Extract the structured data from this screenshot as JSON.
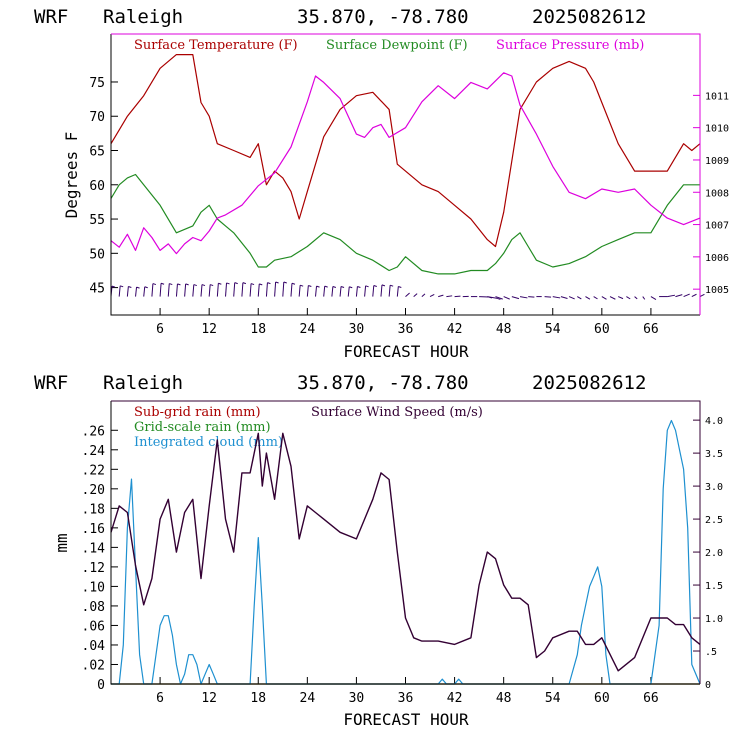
{
  "header": {
    "model": "WRF",
    "location": "Raleigh",
    "coords": "35.870, -78.780",
    "run": "2025082612"
  },
  "colors": {
    "temperature": "#aa0000",
    "dewpoint": "#228b22",
    "pressure": "#dd00dd",
    "sub_grid_rain": "#aa0000",
    "grid_scale_rain": "#228b22",
    "integrated_cloud": "#1e90d0",
    "wind_speed": "#330033",
    "axis_top_right": "#dd00dd",
    "axis_bottom": "#330033"
  },
  "chart_data": [
    {
      "type": "line",
      "xlabel": "FORECAST HOUR",
      "ylabel": "Degrees F",
      "xlim": [
        0,
        72
      ],
      "ylim": [
        41,
        82
      ],
      "y2lim": [
        1004.2,
        1012.9
      ],
      "x_ticks": [
        "6",
        "12",
        "18",
        "24",
        "30",
        "36",
        "42",
        "48",
        "54",
        "60",
        "66"
      ],
      "y_ticks": [
        "45",
        "50",
        "55",
        "60",
        "65",
        "70",
        "75"
      ],
      "y2_ticks": [
        "1005",
        "1006",
        "1007",
        "1008",
        "1009",
        "1010",
        "1011"
      ],
      "legend": [
        "Surface Temperature (F)",
        "Surface Dewpoint (F)",
        "Surface Pressure (mb)"
      ],
      "legend_placement": "top",
      "series": [
        {
          "name": "Surface Temperature (F)",
          "axis": "left",
          "x": [
            0,
            2,
            4,
            6,
            8,
            10,
            11,
            12,
            13,
            15,
            17,
            18,
            19,
            20,
            21,
            22,
            23,
            24,
            26,
            28,
            30,
            32,
            34,
            35,
            36,
            38,
            40,
            42,
            44,
            46,
            47,
            48,
            50,
            52,
            54,
            56,
            58,
            59,
            60,
            62,
            64,
            66,
            68,
            70,
            71,
            72
          ],
          "y": [
            66,
            70,
            73,
            77,
            79,
            79,
            72,
            70,
            66,
            65,
            64,
            66,
            60,
            62,
            61,
            59,
            55,
            59,
            67,
            71,
            73,
            73.5,
            71,
            63,
            62,
            60,
            59,
            57,
            55,
            52,
            51,
            56,
            71,
            75,
            77,
            78,
            77,
            75,
            72,
            66,
            62,
            62,
            62,
            66,
            65,
            66
          ]
        },
        {
          "name": "Surface Dewpoint (F)",
          "axis": "left",
          "x": [
            0,
            1,
            2,
            3,
            4,
            6,
            8,
            10,
            11,
            12,
            13,
            14,
            15,
            17,
            18,
            19,
            20,
            22,
            24,
            26,
            28,
            30,
            32,
            34,
            35,
            36,
            38,
            40,
            42,
            44,
            46,
            47,
            48,
            49,
            50,
            51,
            52,
            54,
            56,
            58,
            60,
            62,
            64,
            66,
            68,
            70,
            72
          ],
          "y": [
            58,
            60,
            61,
            61.5,
            60,
            57,
            53,
            54,
            56,
            57,
            55,
            54,
            53,
            50,
            48,
            48,
            49,
            49.5,
            51,
            53,
            52,
            50,
            49,
            47.5,
            48,
            49.5,
            47.5,
            47,
            47,
            47.5,
            47.5,
            48.5,
            50,
            52,
            53,
            51,
            49,
            48,
            48.5,
            49.5,
            51,
            52,
            53,
            53,
            57,
            60,
            60
          ]
        },
        {
          "name": "Surface Pressure (mb)",
          "axis": "right",
          "x": [
            0,
            1,
            2,
            3,
            4,
            5,
            6,
            7,
            8,
            9,
            10,
            11,
            12,
            13,
            14,
            16,
            18,
            20,
            22,
            24,
            25,
            26,
            28,
            30,
            31,
            32,
            33,
            34,
            36,
            38,
            40,
            42,
            44,
            46,
            48,
            49,
            50,
            52,
            54,
            56,
            58,
            60,
            62,
            64,
            66,
            68,
            70,
            72
          ],
          "y": [
            1006.5,
            1006.3,
            1006.7,
            1006.2,
            1006.9,
            1006.6,
            1006.2,
            1006.4,
            1006.1,
            1006.4,
            1006.6,
            1006.5,
            1006.8,
            1007.2,
            1007.3,
            1007.6,
            1008.2,
            1008.6,
            1009.4,
            1010.8,
            1011.6,
            1011.4,
            1010.9,
            1009.8,
            1009.7,
            1010.0,
            1010.1,
            1009.7,
            1010.0,
            1010.8,
            1011.3,
            1010.9,
            1011.4,
            1011.2,
            1011.7,
            1011.6,
            1010.7,
            1009.8,
            1008.8,
            1008.0,
            1007.8,
            1008.1,
            1008.0,
            1008.1,
            1007.6,
            1007.2,
            1007.0,
            1007.2
          ]
        }
      ],
      "wind_barbs": {
        "row_value": 45,
        "x": [
          0,
          1,
          2,
          3,
          4,
          5,
          6,
          7,
          8,
          9,
          10,
          11,
          12,
          13,
          14,
          15,
          16,
          17,
          18,
          19,
          20,
          21,
          22,
          23,
          24,
          25,
          26,
          27,
          28,
          29,
          30,
          31,
          32,
          33,
          34,
          35,
          36,
          37,
          38,
          39,
          40,
          41,
          42,
          43,
          44,
          45,
          46,
          47,
          48,
          49,
          50,
          51,
          52,
          53,
          54,
          55,
          56,
          57,
          58,
          59,
          60,
          61,
          62,
          63,
          64,
          65,
          66,
          67,
          68,
          69,
          70,
          71,
          72
        ],
        "direction": [
          0,
          0,
          0,
          0,
          0,
          0,
          0,
          0,
          0,
          0,
          0,
          0,
          0,
          0,
          0,
          0,
          0,
          0,
          0,
          0,
          0,
          0,
          0,
          0,
          0,
          0,
          0,
          0,
          0,
          0,
          0,
          0,
          0,
          0,
          0,
          0,
          30,
          30,
          30,
          45,
          60,
          75,
          80,
          85,
          90,
          95,
          110,
          125,
          130,
          120,
          110,
          100,
          90,
          100,
          110,
          120,
          130,
          140,
          140,
          140,
          140,
          135,
          130,
          140,
          150,
          160,
          140,
          90,
          70,
          60,
          50,
          45,
          45
        ],
        "speed_ms": [
          1.7,
          1.8,
          1.6,
          1.4,
          1.5,
          2.5,
          2.6,
          2.5,
          2.4,
          2.4,
          2.2,
          2.2,
          2.2,
          2.6,
          2.7,
          2.8,
          2.8,
          2.5,
          2.4,
          2.8,
          3.0,
          3.0,
          2.6,
          2.0,
          1.9,
          1.7,
          1.7,
          1.6,
          1.6,
          1.5,
          1.6,
          1.8,
          1.9,
          2.1,
          2.0,
          1.6,
          1.0,
          0.6,
          0.4,
          0.3,
          0.3,
          0.3,
          0.3,
          0.3,
          0.4,
          1.5,
          1.8,
          1.2,
          0.9,
          1.0,
          0.9,
          0.4,
          0.1,
          0.5,
          0.9,
          0.8,
          0.7,
          0.4,
          0.6,
          0.3,
          0.7,
          0.8,
          0.4,
          0.3,
          0.1,
          0.3,
          0.9,
          1.0,
          1.0,
          0.9,
          0.9,
          0.5,
          0.4
        ]
      }
    },
    {
      "type": "line",
      "xlabel": "FORECAST HOUR",
      "ylabel": "mm",
      "xlim": [
        0,
        72
      ],
      "ylim": [
        0,
        0.29
      ],
      "y2lim": [
        0,
        4.29
      ],
      "x_ticks": [
        "6",
        "12",
        "18",
        "24",
        "30",
        "36",
        "42",
        "48",
        "54",
        "60",
        "66"
      ],
      "y_ticks": [
        "0",
        ".02",
        ".04",
        ".06",
        ".08",
        ".10",
        ".12",
        ".14",
        ".16",
        ".18",
        ".20",
        ".22",
        ".24",
        ".26"
      ],
      "y2_ticks": [
        "0",
        ".5",
        "1.0",
        "1.5",
        "2.0",
        "2.5",
        "3.0",
        "3.5",
        "4.0"
      ],
      "legend": [
        "Sub-grid rain (mm)",
        "Surface Wind Speed (m/s)",
        "Grid-scale rain (mm)",
        "Integrated cloud (mm)"
      ],
      "legend_placement": "top-left",
      "series": [
        {
          "name": "Sub-grid rain (mm)",
          "axis": "left",
          "x": [
            0,
            72
          ],
          "y": [
            0,
            0
          ]
        },
        {
          "name": "Grid-scale rain (mm)",
          "axis": "left",
          "x": [
            0,
            72
          ],
          "y": [
            0,
            0
          ]
        },
        {
          "name": "Integrated cloud (mm)",
          "axis": "left",
          "x": [
            0,
            1,
            1.5,
            2,
            2.5,
            3,
            3.5,
            4,
            5,
            5.5,
            6,
            6.5,
            7,
            7.5,
            8,
            8.5,
            9,
            9.5,
            10,
            10.5,
            11,
            11.5,
            12,
            12.5,
            13,
            17,
            17.5,
            18,
            18.5,
            19,
            40,
            40.5,
            41,
            42,
            42.5,
            43,
            56,
            57,
            57.5,
            58,
            58.5,
            59,
            59.5,
            60,
            60.5,
            61,
            62,
            66,
            67,
            67.5,
            68,
            68.5,
            69,
            69.5,
            70,
            70.5,
            71,
            72
          ],
          "y": [
            0,
            0,
            0.04,
            0.16,
            0.21,
            0.12,
            0.03,
            0,
            0,
            0.03,
            0.06,
            0.07,
            0.07,
            0.05,
            0.02,
            0,
            0.01,
            0.03,
            0.03,
            0.02,
            0,
            0.01,
            0.02,
            0.01,
            0,
            0,
            0.08,
            0.15,
            0.08,
            0,
            0,
            0.005,
            0,
            0,
            0.005,
            0,
            0,
            0.03,
            0.06,
            0.08,
            0.1,
            0.11,
            0.12,
            0.1,
            0.03,
            0,
            0,
            0,
            0.06,
            0.2,
            0.26,
            0.27,
            0.26,
            0.24,
            0.22,
            0.16,
            0.02,
            0
          ]
        },
        {
          "name": "Surface Wind Speed (m/s)",
          "axis": "right",
          "x": [
            0,
            1,
            2,
            3,
            4,
            5,
            6,
            7,
            8,
            9,
            10,
            11,
            12,
            13,
            14,
            15,
            16,
            17,
            18,
            18.5,
            19,
            20,
            21,
            22,
            23,
            24,
            25,
            26,
            28,
            30,
            32,
            33,
            34,
            35,
            36,
            37,
            38,
            39,
            40,
            42,
            44,
            45,
            46,
            47,
            48,
            49,
            50,
            51,
            52,
            53,
            54,
            56,
            57,
            58,
            59,
            60,
            62,
            64,
            66,
            68,
            69,
            70,
            71,
            72
          ],
          "y": [
            2.3,
            2.7,
            2.6,
            1.8,
            1.2,
            1.6,
            2.5,
            2.8,
            2.0,
            2.6,
            2.8,
            1.6,
            2.7,
            3.7,
            2.5,
            2.0,
            3.2,
            3.2,
            3.8,
            3.0,
            3.5,
            2.8,
            3.8,
            3.3,
            2.2,
            2.7,
            2.6,
            2.5,
            2.3,
            2.2,
            2.8,
            3.2,
            3.1,
            2.0,
            1.0,
            0.7,
            0.65,
            0.65,
            0.65,
            0.6,
            0.7,
            1.5,
            2.0,
            1.9,
            1.5,
            1.3,
            1.3,
            1.2,
            0.4,
            0.5,
            0.7,
            0.8,
            0.8,
            0.6,
            0.6,
            0.7,
            0.2,
            0.4,
            1.0,
            1.0,
            0.9,
            0.9,
            0.7,
            0.6
          ]
        }
      ]
    }
  ]
}
